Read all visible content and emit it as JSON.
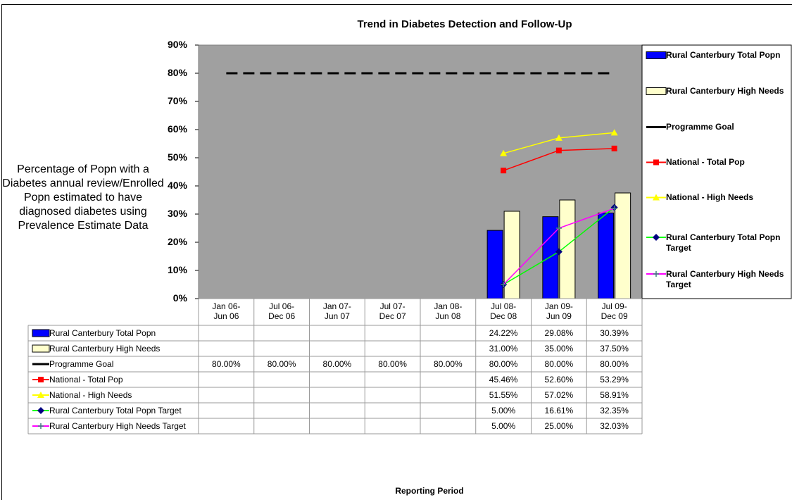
{
  "chart_data": {
    "type": "combo",
    "title": "Trend in Diabetes Detection and Follow-Up",
    "y_label": "Percentage of Popn with a Diabetes annual review/Enrolled Popn estimated to have diagnosed diabetes using Prevalence Estimate Data",
    "x_label": "Reporting Period",
    "categories": [
      "Jan 06-\nJun 06",
      "Jul 06-\nDec 06",
      "Jan 07-\nJun 07",
      "Jul 07-\nDec 07",
      "Jan 08-\nJun 08",
      "Jul 08-\nDec 08",
      "Jan 09-\nJun 09",
      "Jul 09-\nDec 09"
    ],
    "ylim": [
      0,
      90
    ],
    "yticks": [
      {
        "value": 0,
        "label": "0%"
      },
      {
        "value": 10,
        "label": "10%"
      },
      {
        "value": 20,
        "label": "20%"
      },
      {
        "value": 30,
        "label": "30%"
      },
      {
        "value": 40,
        "label": "40%"
      },
      {
        "value": 50,
        "label": "50%"
      },
      {
        "value": 60,
        "label": "60%"
      },
      {
        "value": 70,
        "label": "70%"
      },
      {
        "value": 80,
        "label": "80%"
      },
      {
        "value": 90,
        "label": "90%"
      }
    ],
    "plot_background": "#a0a0a0",
    "series": [
      {
        "name": "Rural Canterbury Total Popn",
        "type": "bar",
        "color": "#0000ff",
        "values": [
          null,
          null,
          null,
          null,
          null,
          24.22,
          29.08,
          30.39
        ],
        "value_labels": [
          null,
          null,
          null,
          null,
          null,
          "24.22%",
          "29.08%",
          "30.39%"
        ]
      },
      {
        "name": "Rural Canterbury High Needs",
        "type": "bar",
        "color": "#ffffcc",
        "values": [
          null,
          null,
          null,
          null,
          null,
          31.0,
          35.0,
          37.5
        ],
        "value_labels": [
          null,
          null,
          null,
          null,
          null,
          "31.00%",
          "35.00%",
          "37.50%"
        ]
      },
      {
        "name": "Programme Goal",
        "type": "line",
        "color": "#000000",
        "dashed": true,
        "values": [
          80,
          80,
          80,
          80,
          80,
          80,
          80,
          80
        ],
        "value_labels": [
          "80.00%",
          "80.00%",
          "80.00%",
          "80.00%",
          "80.00%",
          "80.00%",
          "80.00%",
          "80.00%"
        ]
      },
      {
        "name": "National - Total Pop",
        "type": "line",
        "color": "#ff0000",
        "marker": "square",
        "values": [
          null,
          null,
          null,
          null,
          null,
          45.46,
          52.6,
          53.29
        ],
        "value_labels": [
          null,
          null,
          null,
          null,
          null,
          "45.46%",
          "52.60%",
          "53.29%"
        ]
      },
      {
        "name": "National - High Needs",
        "type": "line",
        "color": "#ffff00",
        "marker": "triangle",
        "values": [
          null,
          null,
          null,
          null,
          null,
          51.55,
          57.02,
          58.91
        ],
        "value_labels": [
          null,
          null,
          null,
          null,
          null,
          "51.55%",
          "57.02%",
          "58.91%"
        ]
      },
      {
        "name": "Rural Canterbury Total Popn Target",
        "type": "line",
        "color": "#00ff00",
        "marker": "diamond",
        "marker_color": "#000080",
        "values": [
          null,
          null,
          null,
          null,
          null,
          5.0,
          16.61,
          32.35
        ],
        "value_labels": [
          null,
          null,
          null,
          null,
          null,
          "5.00%",
          "16.61%",
          "32.35%"
        ]
      },
      {
        "name": "Rural Canterbury High Needs Target",
        "type": "line",
        "color": "#ff00ff",
        "marker": "plus",
        "marker_color": "#408080",
        "values": [
          null,
          null,
          null,
          null,
          null,
          5.0,
          25.0,
          32.03
        ],
        "value_labels": [
          null,
          null,
          null,
          null,
          null,
          "5.00%",
          "25.00%",
          "32.03%"
        ]
      }
    ]
  }
}
